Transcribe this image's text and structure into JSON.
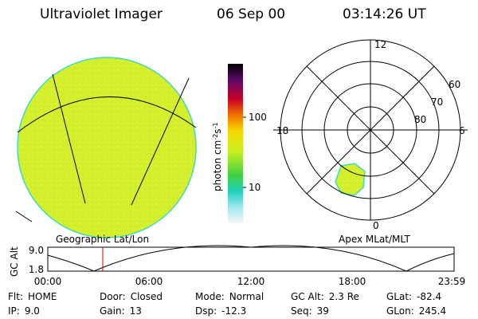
{
  "header": {
    "title": "Ultraviolet Imager",
    "date": "06 Sep 00",
    "time": "03:14:26 UT"
  },
  "colorbar": {
    "label": [
      "photon cm",
      "-2",
      "s",
      "-1"
    ],
    "ticks": [
      "100",
      "10"
    ]
  },
  "polar": {
    "mlt_labels": [
      "12",
      "18",
      "6",
      "0"
    ],
    "lat_labels": [
      "60",
      "70",
      "80"
    ]
  },
  "panels": {
    "left": "Geographic Lat/Lon",
    "right": "Apex MLat/MLT"
  },
  "altitude": {
    "ylabel": "GC Alt",
    "yticks": [
      "9.0",
      "1.8"
    ],
    "xticks": [
      "00:00",
      "06:00",
      "12:00",
      "18:00",
      "23:59"
    ]
  },
  "footer": {
    "rows": [
      [
        {
          "label": "Flt:",
          "value": "HOME"
        },
        {
          "label": "Door:",
          "value": "Closed"
        },
        {
          "label": "Mode:",
          "value": "Normal"
        },
        {
          "label": "GC Alt:",
          "value": "2.3 Re"
        },
        {
          "label": "GLat:",
          "value": "-82.4"
        }
      ],
      [
        {
          "label": "IP:",
          "value": "9.0"
        },
        {
          "label": "Gain:",
          "value": "13"
        },
        {
          "label": "Dsp:",
          "value": "-12.3"
        },
        {
          "label": "Seq:",
          "value": "39"
        },
        {
          "label": "GLon:",
          "value": "245.4"
        }
      ]
    ]
  }
}
